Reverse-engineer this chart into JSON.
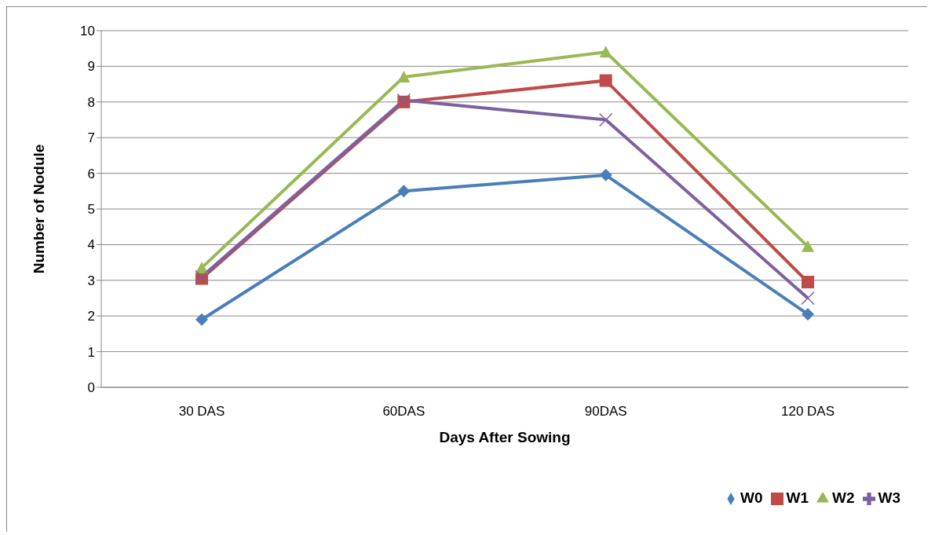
{
  "chart_data": {
    "type": "line",
    "xlabel": "Days After Sowing",
    "ylabel": "Number of Nodule",
    "categories": [
      "30 DAS",
      "60DAS",
      "90DAS",
      "120 DAS"
    ],
    "series": [
      {
        "name": "W0",
        "color": "#4a7ebb",
        "marker": "diamond",
        "values": [
          1.9,
          5.5,
          5.95,
          2.05
        ]
      },
      {
        "name": "W1",
        "color": "#be4b48",
        "marker": "square",
        "values": [
          3.05,
          8.0,
          8.6,
          2.95
        ]
      },
      {
        "name": "W2",
        "color": "#98b954",
        "marker": "triangle",
        "values": [
          3.35,
          8.7,
          9.4,
          3.95
        ]
      },
      {
        "name": "W3",
        "color": "#7d60a0",
        "marker": "cross",
        "values": [
          3.1,
          8.05,
          7.5,
          2.5
        ]
      }
    ],
    "ylim": [
      0,
      10
    ],
    "yticks": [
      0,
      1,
      2,
      3,
      4,
      5,
      6,
      7,
      8,
      9,
      10
    ],
    "grid": "y",
    "legend": "bottom right",
    "line_style": "solid"
  }
}
